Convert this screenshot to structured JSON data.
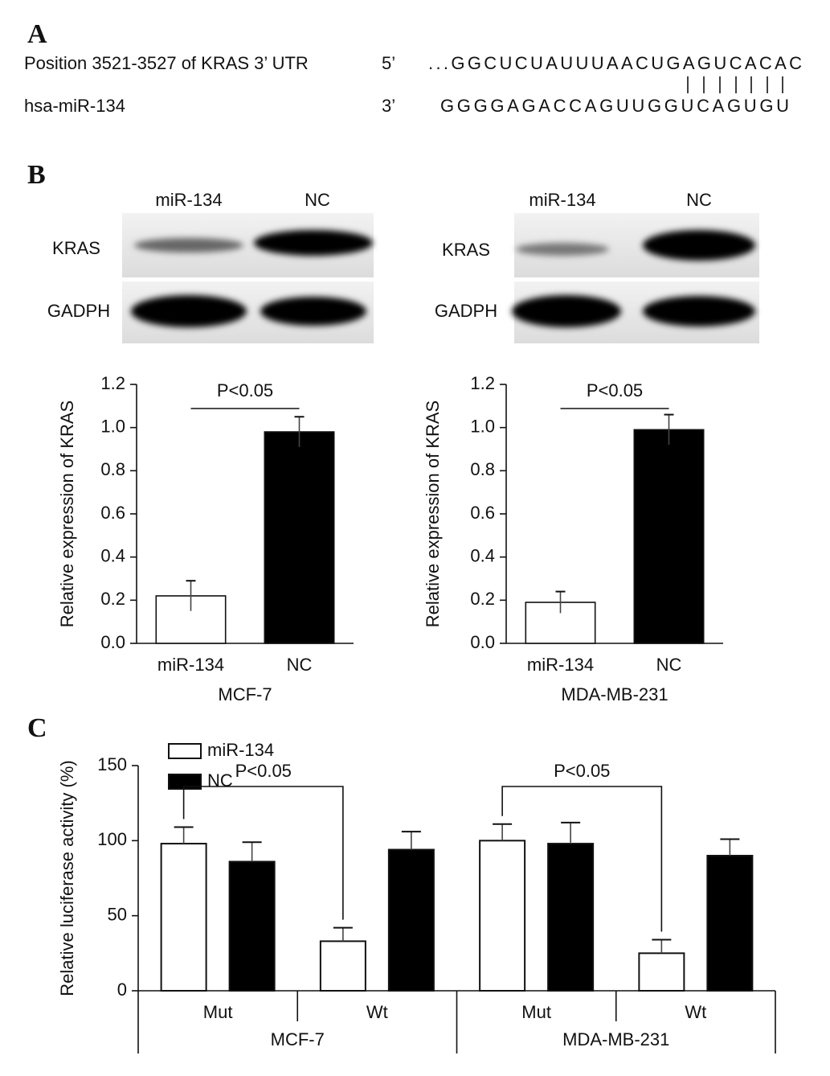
{
  "panel_labels": [
    "A",
    "B",
    "C"
  ],
  "sequence": {
    "target_label": "Position 3521-3527 of KRAS 3’ UTR",
    "target_end": "5’",
    "target_seq": "...GGCUCUAUUUAACUGAGUCACAC",
    "mirna_label": "hsa-miR-134",
    "mirna_end": "3’",
    "mirna_seq": "GGGGAGACCAGUUGGUCAGUGU"
  },
  "blots": [
    {
      "lanes": [
        "miR-134",
        "NC"
      ],
      "rows": [
        "KRAS",
        "GADPH"
      ]
    },
    {
      "lanes": [
        "miR-134",
        "NC"
      ],
      "rows": [
        "KRAS",
        "GADPH"
      ]
    }
  ],
  "chart_data": [
    {
      "type": "bar",
      "categories": [
        "miR-134",
        "NC"
      ],
      "values": [
        0.22,
        0.98
      ],
      "errors": [
        0.07,
        0.07
      ],
      "colors": [
        "#ffffff",
        "#000000"
      ],
      "ylabel": "Relative expression of KRAS",
      "xlabel": "MCF-7",
      "annotation": "P<0.05",
      "ylim": [
        0,
        1.2
      ],
      "yticks": [
        {
          "value": 0,
          "label": "0.0"
        },
        0.2,
        0.4,
        0.6,
        0.8,
        {
          "value": 1,
          "label": "1.0"
        },
        1.2
      ]
    },
    {
      "type": "bar",
      "categories": [
        "miR-134",
        "NC"
      ],
      "values": [
        0.19,
        0.99
      ],
      "errors": [
        0.05,
        0.07
      ],
      "colors": [
        "#ffffff",
        "#000000"
      ],
      "ylabel": "Relative expression of KRAS",
      "xlabel": "MDA-MB-231",
      "annotation": "P<0.05",
      "ylim": [
        0,
        1.2
      ],
      "yticks": [
        {
          "value": 0,
          "label": "0.0"
        },
        0.2,
        0.4,
        0.6,
        0.8,
        {
          "value": 1,
          "label": "1.0"
        },
        1.2
      ]
    },
    {
      "type": "grouped_bar",
      "categories": [
        "Mut",
        "Wt",
        "Mut",
        "Wt"
      ],
      "groups": [
        "MCF-7",
        "MDA-MB-231"
      ],
      "series": [
        {
          "name": "miR-134",
          "color": "#ffffff",
          "values": [
            98,
            33,
            100,
            25
          ],
          "errors": [
            11,
            9,
            11,
            9
          ]
        },
        {
          "name": "NC",
          "color": "#000000",
          "values": [
            86,
            94,
            98,
            90
          ],
          "errors": [
            13,
            12,
            14,
            11
          ]
        }
      ],
      "ylabel": "Relative luciferase activity (%)",
      "annotations": [
        "P<0.05",
        "P<0.05"
      ],
      "ylim": [
        0,
        150
      ],
      "yticks": [
        0,
        50,
        100,
        150
      ]
    }
  ]
}
